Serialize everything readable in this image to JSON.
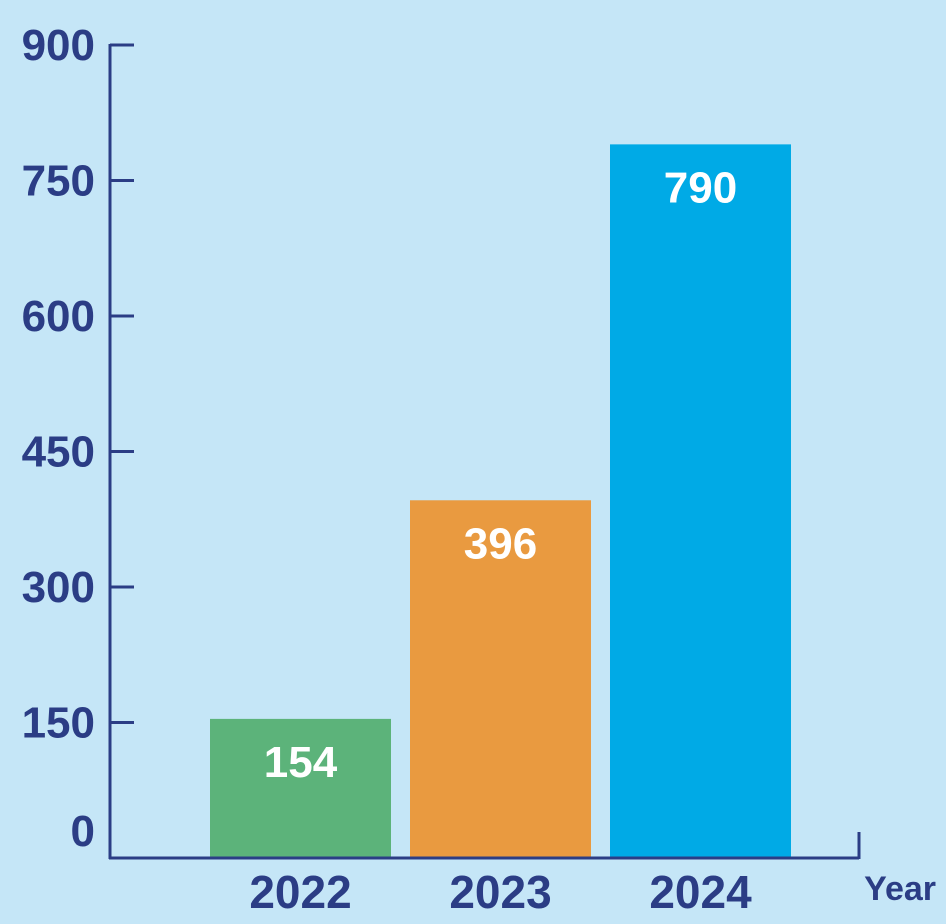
{
  "chart_data": {
    "type": "bar",
    "title": "",
    "xlabel": "Year",
    "ylabel": "",
    "categories": [
      "2022",
      "2023",
      "2024"
    ],
    "values": [
      154,
      396,
      790
    ],
    "value_labels": [
      "154",
      "396",
      "790"
    ],
    "ylim": [
      0,
      900
    ],
    "yticks": [
      0,
      150,
      300,
      450,
      600,
      750,
      900
    ],
    "ytick_labels": [
      "0",
      "150",
      "300",
      "450",
      "600",
      "750",
      "900"
    ],
    "grid": false,
    "colors": [
      "#5cb37a",
      "#e99a40",
      "#00aae6"
    ]
  },
  "style": {
    "background": "#c5e6f7",
    "axis_color": "#2b3d85",
    "label_color": "#2b3d85",
    "value_label_color": "#ffffff"
  }
}
